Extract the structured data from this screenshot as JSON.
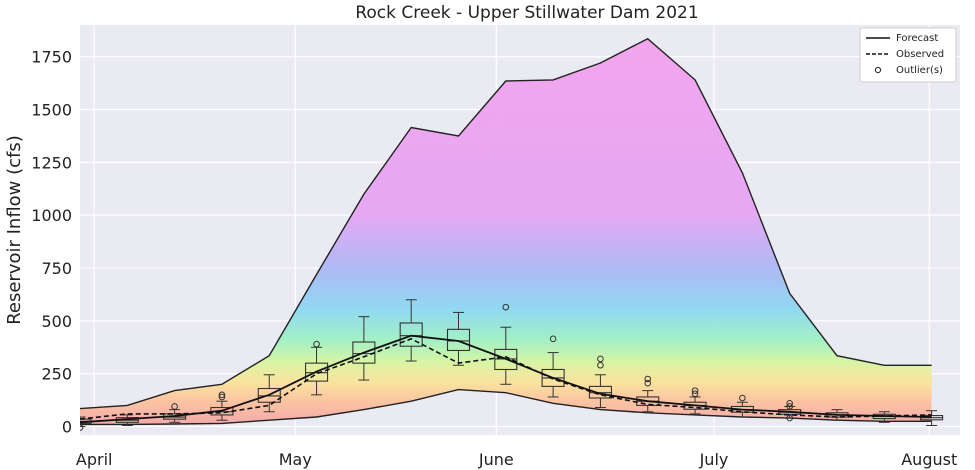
{
  "chart_data": {
    "type": "line",
    "title": "Rock Creek - Upper Stillwater Dam 2021",
    "ylabel": "Reservoir Inflow (cfs)",
    "xlabel": "",
    "ylim": [
      -40,
      1900
    ],
    "xlim": [
      0,
      18.6
    ],
    "yticks": [
      0,
      250,
      500,
      750,
      1000,
      1250,
      1500,
      1750
    ],
    "month_labels": [
      {
        "label": "April",
        "x": 0.3
      },
      {
        "label": "May",
        "x": 4.55
      },
      {
        "label": "June",
        "x": 8.8
      },
      {
        "label": "July",
        "x": 13.4
      },
      {
        "label": "August",
        "x": 17.95
      }
    ],
    "x": [
      0,
      1,
      2,
      3,
      4,
      5,
      6,
      7,
      8,
      9,
      10,
      11,
      12,
      13,
      14,
      15,
      16,
      17,
      18
    ],
    "envelope_upper": [
      85,
      100,
      170,
      200,
      335,
      720,
      1100,
      1415,
      1375,
      1635,
      1640,
      1720,
      1835,
      1640,
      1200,
      630,
      335,
      290,
      290
    ],
    "envelope_lower": [
      10,
      10,
      12,
      15,
      30,
      45,
      80,
      120,
      175,
      160,
      110,
      80,
      65,
      55,
      45,
      40,
      30,
      25,
      25
    ],
    "forecast": [
      20,
      35,
      50,
      75,
      150,
      260,
      350,
      430,
      405,
      320,
      230,
      155,
      120,
      100,
      80,
      70,
      55,
      50,
      45
    ],
    "observed": [
      35,
      60,
      60,
      65,
      100,
      250,
      330,
      415,
      300,
      330,
      225,
      150,
      105,
      90,
      70,
      55,
      45,
      50,
      55
    ],
    "boxes": [
      {
        "x": 0,
        "q1": 15,
        "median": 25,
        "q3": 35,
        "low": 0,
        "high": 45
      },
      {
        "x": 1,
        "q1": 20,
        "median": 30,
        "q3": 42,
        "low": 5,
        "high": 55
      },
      {
        "x": 2,
        "q1": 35,
        "median": 45,
        "q3": 60,
        "low": 20,
        "high": 80
      },
      {
        "x": 3,
        "q1": 55,
        "median": 70,
        "q3": 90,
        "low": 30,
        "high": 120
      },
      {
        "x": 4,
        "q1": 115,
        "median": 145,
        "q3": 180,
        "low": 70,
        "high": 245
      },
      {
        "x": 5,
        "q1": 215,
        "median": 255,
        "q3": 300,
        "low": 150,
        "high": 375
      },
      {
        "x": 6,
        "q1": 300,
        "median": 345,
        "q3": 400,
        "low": 220,
        "high": 520
      },
      {
        "x": 7,
        "q1": 380,
        "median": 430,
        "q3": 490,
        "low": 310,
        "high": 600
      },
      {
        "x": 8,
        "q1": 360,
        "median": 405,
        "q3": 460,
        "low": 290,
        "high": 540
      },
      {
        "x": 9,
        "q1": 270,
        "median": 320,
        "q3": 365,
        "low": 200,
        "high": 470
      },
      {
        "x": 10,
        "q1": 190,
        "median": 230,
        "q3": 270,
        "low": 140,
        "high": 350
      },
      {
        "x": 11,
        "q1": 135,
        "median": 160,
        "q3": 190,
        "low": 90,
        "high": 245
      },
      {
        "x": 12,
        "q1": 100,
        "median": 120,
        "q3": 140,
        "low": 70,
        "high": 170
      },
      {
        "x": 13,
        "q1": 82,
        "median": 100,
        "q3": 115,
        "low": 60,
        "high": 140
      },
      {
        "x": 14,
        "q1": 68,
        "median": 80,
        "q3": 95,
        "low": 45,
        "high": 115
      },
      {
        "x": 15,
        "q1": 58,
        "median": 68,
        "q3": 80,
        "low": 40,
        "high": 95
      },
      {
        "x": 16,
        "q1": 45,
        "median": 55,
        "q3": 65,
        "low": 30,
        "high": 80
      },
      {
        "x": 17,
        "q1": 38,
        "median": 48,
        "q3": 58,
        "low": 20,
        "high": 70
      },
      {
        "x": 18,
        "q1": 32,
        "median": 42,
        "q3": 52,
        "low": 5,
        "high": 75
      }
    ],
    "outliers": [
      {
        "x": 0,
        "y": -5
      },
      {
        "x": 2,
        "y": 95
      },
      {
        "x": 3,
        "y": 140
      },
      {
        "x": 3,
        "y": 150
      },
      {
        "x": 5,
        "y": 390
      },
      {
        "x": 9,
        "y": 565
      },
      {
        "x": 10,
        "y": 415
      },
      {
        "x": 11,
        "y": 320
      },
      {
        "x": 11,
        "y": 290
      },
      {
        "x": 12,
        "y": 225
      },
      {
        "x": 12,
        "y": 205
      },
      {
        "x": 13,
        "y": 170
      },
      {
        "x": 13,
        "y": 155
      },
      {
        "x": 14,
        "y": 135
      },
      {
        "x": 15,
        "y": 110
      },
      {
        "x": 15,
        "y": 95
      },
      {
        "x": 15,
        "y": 40
      }
    ],
    "legend": {
      "placement": "top-right",
      "entries": [
        {
          "label": "Forecast",
          "style": "solid"
        },
        {
          "label": "Observed",
          "style": "dashed"
        },
        {
          "label": "Outlier(s)",
          "style": "marker"
        }
      ]
    },
    "colors": {
      "envelope_top": "#f3a7ea",
      "forecast_line": "#111111",
      "box_stroke": "#333333"
    },
    "grid": true
  }
}
